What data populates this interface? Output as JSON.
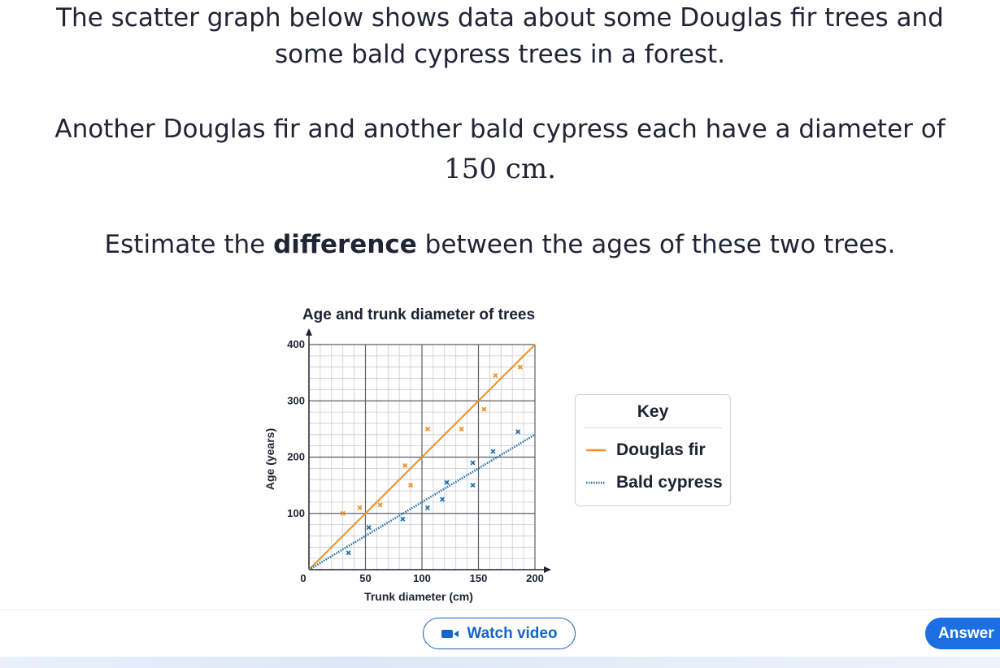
{
  "question": {
    "line1": "The scatter graph below shows data about some Douglas fir trees and",
    "line2": "some bald cypress trees in a forest.",
    "line3": "Another Douglas fir and another bald cypress each have a diameter of",
    "math": "150 cm.",
    "line5_pre": "Estimate the ",
    "line5_bold": "difference",
    "line5_post": " between the ages of these two trees."
  },
  "chart_data": {
    "type": "scatter",
    "title": "Age and trunk diameter of trees",
    "xlabel": "Trunk diameter (cm)",
    "ylabel": "Age (years)",
    "xlim": [
      0,
      200
    ],
    "ylim": [
      0,
      400
    ],
    "x_ticks": [
      "0",
      "50",
      "100",
      "150",
      "200"
    ],
    "y_ticks": [
      "100",
      "200",
      "300",
      "400"
    ],
    "grid": true,
    "legend": "right",
    "series": [
      {
        "name": "Douglas fir",
        "color": "#f0901e",
        "line_style": "solid",
        "trend": {
          "from": [
            0,
            0
          ],
          "to": [
            200,
            400
          ]
        },
        "points": [
          [
            30,
            100
          ],
          [
            45,
            110
          ],
          [
            63,
            115
          ],
          [
            85,
            185
          ],
          [
            90,
            150
          ],
          [
            105,
            250
          ],
          [
            135,
            250
          ],
          [
            155,
            285
          ],
          [
            165,
            345
          ],
          [
            187,
            360
          ]
        ]
      },
      {
        "name": "Bald cypress",
        "color": "#1f6fb2",
        "line_style": "dotted",
        "trend": {
          "from": [
            0,
            0
          ],
          "to": [
            200,
            240
          ]
        },
        "points": [
          [
            35,
            30
          ],
          [
            53,
            75
          ],
          [
            83,
            90
          ],
          [
            105,
            110
          ],
          [
            118,
            125
          ],
          [
            122,
            155
          ],
          [
            145,
            190
          ],
          [
            145,
            150
          ],
          [
            163,
            210
          ],
          [
            185,
            245
          ]
        ]
      }
    ]
  },
  "key": {
    "title": "Key",
    "items": [
      "Douglas fir",
      "Bald cypress"
    ]
  },
  "buttons": {
    "watch_video": "Watch video",
    "answer": "Answer"
  }
}
